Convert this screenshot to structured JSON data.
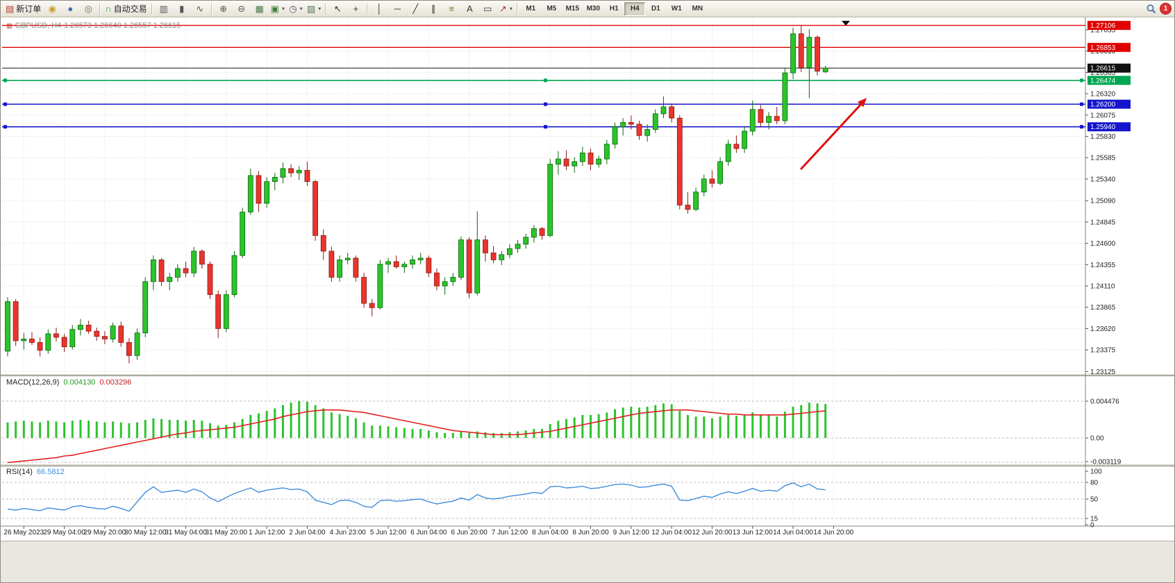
{
  "toolbar": {
    "badge": "1",
    "buttons": [
      {
        "name": "new-order-button",
        "icon": "▤",
        "icon_color": "#b03a2e",
        "label": "新订单"
      },
      {
        "name": "metaeditor-button",
        "icon": "◉",
        "icon_color": "#c9a227"
      },
      {
        "name": "data-window-button",
        "icon": "●",
        "icon_color": "#3b6fb5"
      },
      {
        "name": "strategy-tester-button",
        "icon": "◎",
        "icon_color": "#6b6b6b"
      },
      {
        "sep": true
      },
      {
        "name": "auto-trading-button",
        "icon": "∩",
        "icon_color": "#2e9e3f",
        "label": "自动交易"
      },
      {
        "sep": true
      },
      {
        "name": "bar-chart-button",
        "icon": "▥",
        "icon_color": "#555555"
      },
      {
        "name": "candlestick-chart-button",
        "icon": "▮",
        "icon_color": "#555555"
      },
      {
        "name": "line-chart-button",
        "icon": "∿",
        "icon_color": "#555555"
      },
      {
        "sep": true
      },
      {
        "name": "zoom-in-button",
        "icon": "⊕",
        "icon_color": "#555555"
      },
      {
        "name": "zoom-out-button",
        "icon": "⊖",
        "icon_color": "#555555"
      },
      {
        "name": "tile-windows-button",
        "icon": "▦",
        "icon_color": "#4a7a4a"
      },
      {
        "name": "new-chart-button",
        "icon": "▣",
        "icon_color": "#3f7f3f",
        "dropdown": true
      },
      {
        "name": "periods-button",
        "icon": "◷",
        "icon_color": "#555577",
        "dropdown": true
      },
      {
        "name": "templates-button",
        "icon": "▨",
        "icon_color": "#557755",
        "dropdown": true
      },
      {
        "sep": true
      },
      {
        "name": "cursor-button",
        "icon": "↖",
        "icon_color": "#333333"
      },
      {
        "name": "crosshair-button",
        "icon": "+",
        "icon_color": "#333333"
      },
      {
        "sep": true
      },
      {
        "name": "vertical-line-button",
        "icon": "│",
        "icon_color": "#333333"
      },
      {
        "name": "horizontal-line-button",
        "icon": "─",
        "icon_color": "#333333"
      },
      {
        "name": "trendline-button",
        "icon": "╱",
        "icon_color": "#333333"
      },
      {
        "name": "channel-button",
        "icon": "∥",
        "icon_color": "#333333"
      },
      {
        "name": "fibonacci-button",
        "icon": "≡",
        "icon_color": "#777733"
      },
      {
        "name": "text-button",
        "icon": "A",
        "icon_color": "#333333"
      },
      {
        "name": "label-button",
        "icon": "▭",
        "icon_color": "#333333"
      },
      {
        "name": "arrows-button",
        "icon": "↗",
        "icon_color": "#aa3333",
        "dropdown": true
      },
      {
        "sep": true
      }
    ],
    "timeframes": [
      {
        "name": "tf-m1",
        "label": "M1"
      },
      {
        "name": "tf-m5",
        "label": "M5"
      },
      {
        "name": "tf-m15",
        "label": "M15"
      },
      {
        "name": "tf-m30",
        "label": "M30"
      },
      {
        "name": "tf-h1",
        "label": "H1"
      },
      {
        "name": "tf-h4",
        "label": "H4",
        "active": true
      },
      {
        "name": "tf-d1",
        "label": "D1"
      },
      {
        "name": "tf-w1",
        "label": "W1"
      },
      {
        "name": "tf-mn",
        "label": "MN"
      }
    ]
  },
  "chart": {
    "title": {
      "text": "GBPUSD, H4"
    },
    "objects": [
      {
        "name": "resistance-line-1",
        "label": "1.27106",
        "color": "#e00000",
        "width": 1.4,
        "handles": false,
        "interactable": true
      },
      {
        "name": "resistance-line-2",
        "label": "1.26853",
        "color": "#e00000",
        "width": 1.4,
        "handles": false,
        "interactable": true
      },
      {
        "name": "current-price-line",
        "label": "1.26615",
        "color": "#111111",
        "width": 1,
        "handles": false,
        "interactable": false
      },
      {
        "name": "support-line-green",
        "label": "1.26474",
        "color": "#00a651",
        "width": 1.6,
        "handles": true,
        "interactable": true
      },
      {
        "name": "support-line-blue-1",
        "label": "1.26200",
        "color": "#1414cc",
        "width": 1.6,
        "handles": true,
        "interactable": true
      },
      {
        "name": "support-line-blue-2",
        "label": "1.25940",
        "color": "#1414cc",
        "width": 1.6,
        "handles": true,
        "interactable": true
      }
    ],
    "arrow": {
      "color": "#e01010"
    }
  },
  "chart_data": {
    "type": "candlestick",
    "symbol": "GBPUSD",
    "period": "H4",
    "ohlc_display": "1.26573 1.26640 1.26557 1.26615",
    "price_scale": [
      "1.27055",
      "1.26810",
      "1.26565",
      "1.26320",
      "1.26075",
      "1.25830",
      "1.25585",
      "1.25340",
      "1.25090",
      "1.24845",
      "1.24600",
      "1.24355",
      "1.24110",
      "1.23865",
      "1.23620",
      "1.23375",
      "1.23125"
    ],
    "time_scale": [
      "26 May 2023",
      "29 May 04:00",
      "29 May 20:00",
      "30 May 12:00",
      "31 May 04:00",
      "31 May 20:00",
      "1 Jun 12:00",
      "2 Jun 04:00",
      "4 Jun 23:00",
      "5 Jun 12:00",
      "6 Jun 04:00",
      "6 Jun 20:00",
      "7 Jun 12:00",
      "8 Jun 04:00",
      "8 Jun 20:00",
      "9 Jun 12:00",
      "12 Jun 04:00",
      "12 Jun 20:00",
      "13 Jun 12:00",
      "14 Jun 04:00",
      "14 Jun 20:00"
    ],
    "candles": [
      [
        1.2336,
        1.2398,
        1.233,
        1.2393
      ],
      [
        1.2393,
        1.2396,
        1.2342,
        1.2348
      ],
      [
        1.2348,
        1.2357,
        1.2338,
        1.235
      ],
      [
        1.235,
        1.2358,
        1.2343,
        1.2346
      ],
      [
        1.2346,
        1.2352,
        1.233,
        1.2337
      ],
      [
        1.2337,
        1.2361,
        1.2333,
        1.2356
      ],
      [
        1.2356,
        1.2363,
        1.2347,
        1.2352
      ],
      [
        1.2352,
        1.2356,
        1.2335,
        1.2341
      ],
      [
        1.2341,
        1.2366,
        1.2338,
        1.2361
      ],
      [
        1.2361,
        1.2373,
        1.2354,
        1.2366
      ],
      [
        1.2366,
        1.2371,
        1.2356,
        1.2359
      ],
      [
        1.2359,
        1.2363,
        1.2348,
        1.2353
      ],
      [
        1.2353,
        1.2359,
        1.2344,
        1.235
      ],
      [
        1.235,
        1.2369,
        1.2346,
        1.2365
      ],
      [
        1.2365,
        1.237,
        1.2341,
        1.2346
      ],
      [
        1.2346,
        1.2351,
        1.2322,
        1.2331
      ],
      [
        1.2331,
        1.2362,
        1.2326,
        1.2357
      ],
      [
        1.2357,
        1.2421,
        1.2352,
        1.2416
      ],
      [
        1.2416,
        1.2446,
        1.2406,
        1.2441
      ],
      [
        1.2441,
        1.2443,
        1.2411,
        1.2416
      ],
      [
        1.2416,
        1.2426,
        1.2406,
        1.2421
      ],
      [
        1.2421,
        1.2436,
        1.2416,
        1.2431
      ],
      [
        1.2431,
        1.2439,
        1.2421,
        1.2426
      ],
      [
        1.2426,
        1.2456,
        1.2421,
        1.2451
      ],
      [
        1.2451,
        1.2453,
        1.2431,
        1.2436
      ],
      [
        1.2436,
        1.2439,
        1.2396,
        1.2401
      ],
      [
        1.2401,
        1.2406,
        1.2351,
        1.2362
      ],
      [
        1.2362,
        1.2406,
        1.2358,
        1.2401
      ],
      [
        1.2401,
        1.2451,
        1.2398,
        1.2446
      ],
      [
        1.2446,
        1.2501,
        1.2443,
        1.2496
      ],
      [
        1.2496,
        1.2546,
        1.2493,
        1.2538
      ],
      [
        1.2538,
        1.2543,
        1.2496,
        1.2506
      ],
      [
        1.2506,
        1.2536,
        1.2501,
        1.2531
      ],
      [
        1.2531,
        1.2541,
        1.2521,
        1.2536
      ],
      [
        1.2536,
        1.2553,
        1.2529,
        1.2546
      ],
      [
        1.2546,
        1.2551,
        1.2536,
        1.2541
      ],
      [
        1.2541,
        1.2549,
        1.2533,
        1.2544
      ],
      [
        1.2544,
        1.2554,
        1.2526,
        1.2531
      ],
      [
        1.2531,
        1.2533,
        1.2463,
        1.2469
      ],
      [
        1.2469,
        1.2476,
        1.2441,
        1.2451
      ],
      [
        1.2451,
        1.2456,
        1.2416,
        1.2421
      ],
      [
        1.2421,
        1.2446,
        1.2416,
        1.2441
      ],
      [
        1.2441,
        1.2449,
        1.2436,
        1.2443
      ],
      [
        1.2443,
        1.2446,
        1.2416,
        1.2421
      ],
      [
        1.2421,
        1.2426,
        1.2386,
        1.2391
      ],
      [
        1.2391,
        1.2396,
        1.2376,
        1.2386
      ],
      [
        1.2386,
        1.2441,
        1.2384,
        1.2436
      ],
      [
        1.2436,
        1.2443,
        1.2426,
        1.2439
      ],
      [
        1.2439,
        1.2446,
        1.2431,
        1.2433
      ],
      [
        1.2433,
        1.2439,
        1.2426,
        1.2436
      ],
      [
        1.2436,
        1.2446,
        1.2431,
        1.2441
      ],
      [
        1.2441,
        1.2449,
        1.2436,
        1.2443
      ],
      [
        1.2443,
        1.2446,
        1.2421,
        1.2426
      ],
      [
        1.2426,
        1.2431,
        1.2406,
        1.2411
      ],
      [
        1.2411,
        1.2421,
        1.2401,
        1.2416
      ],
      [
        1.2416,
        1.2426,
        1.2411,
        1.2421
      ],
      [
        1.2421,
        1.2468,
        1.2418,
        1.2464
      ],
      [
        1.2464,
        1.2467,
        1.2397,
        1.2403
      ],
      [
        1.2403,
        1.2497,
        1.24,
        1.2464
      ],
      [
        1.2464,
        1.2469,
        1.2439,
        1.2449
      ],
      [
        1.2449,
        1.2457,
        1.2437,
        1.2441
      ],
      [
        1.2441,
        1.2451,
        1.2435,
        1.2447
      ],
      [
        1.2447,
        1.2459,
        1.2443,
        1.2454
      ],
      [
        1.2454,
        1.2464,
        1.2449,
        1.2459
      ],
      [
        1.2459,
        1.2471,
        1.2454,
        1.2467
      ],
      [
        1.2467,
        1.2481,
        1.2461,
        1.2477
      ],
      [
        1.2477,
        1.2479,
        1.2464,
        1.2469
      ],
      [
        1.2469,
        1.2557,
        1.2467,
        1.2551
      ],
      [
        1.2551,
        1.2566,
        1.2539,
        1.2557
      ],
      [
        1.2557,
        1.2567,
        1.2544,
        1.2549
      ],
      [
        1.2549,
        1.2559,
        1.2541,
        1.2554
      ],
      [
        1.2554,
        1.2571,
        1.2549,
        1.2564
      ],
      [
        1.2564,
        1.2569,
        1.2544,
        1.2551
      ],
      [
        1.2551,
        1.2561,
        1.2547,
        1.2557
      ],
      [
        1.2557,
        1.2579,
        1.2551,
        1.2574
      ],
      [
        1.2574,
        1.2599,
        1.2569,
        1.2594
      ],
      [
        1.2594,
        1.2604,
        1.2584,
        1.2599
      ],
      [
        1.2599,
        1.2607,
        1.2591,
        1.2597
      ],
      [
        1.2597,
        1.2601,
        1.2579,
        1.2584
      ],
      [
        1.2584,
        1.2597,
        1.2577,
        1.2591
      ],
      [
        1.2591,
        1.2614,
        1.2587,
        1.2609
      ],
      [
        1.2609,
        1.2629,
        1.2604,
        1.2617
      ],
      [
        1.2617,
        1.2621,
        1.2599,
        1.2604
      ],
      [
        1.2604,
        1.2607,
        1.2499,
        1.2504
      ],
      [
        1.2504,
        1.2519,
        1.2494,
        1.2499
      ],
      [
        1.2499,
        1.2524,
        1.2497,
        1.2519
      ],
      [
        1.2519,
        1.2539,
        1.2514,
        1.2534
      ],
      [
        1.2534,
        1.2544,
        1.2524,
        1.2529
      ],
      [
        1.2529,
        1.2559,
        1.2527,
        1.2554
      ],
      [
        1.2554,
        1.2579,
        1.2549,
        1.2574
      ],
      [
        1.2574,
        1.2584,
        1.2564,
        1.2569
      ],
      [
        1.2569,
        1.2594,
        1.2564,
        1.2589
      ],
      [
        1.2589,
        1.2624,
        1.2584,
        1.2614
      ],
      [
        1.2614,
        1.2619,
        1.2594,
        1.2599
      ],
      [
        1.2599,
        1.2611,
        1.2591,
        1.2606
      ],
      [
        1.2606,
        1.2617,
        1.2597,
        1.2601
      ],
      [
        1.2601,
        1.2662,
        1.2597,
        1.2656
      ],
      [
        1.2656,
        1.2708,
        1.2649,
        1.2701
      ],
      [
        1.2701,
        1.2711,
        1.2657,
        1.2662
      ],
      [
        1.2662,
        1.2706,
        1.2627,
        1.2697
      ],
      [
        1.2697,
        1.2699,
        1.2653,
        1.2658
      ],
      [
        1.26573,
        1.2664,
        1.26557,
        1.26615
      ]
    ],
    "macd": {
      "label": "MACD(12,26,9)",
      "main_value": "0.004130",
      "signal_value": "0.003296",
      "scale": [
        "0.004476",
        "0.00",
        "-0.003119"
      ],
      "histogram": [
        0.0019,
        0.002,
        0.0021,
        0.002,
        0.0019,
        0.0021,
        0.002,
        0.0019,
        0.0021,
        0.0022,
        0.0021,
        0.002,
        0.0019,
        0.002,
        0.0019,
        0.0018,
        0.0019,
        0.0022,
        0.0024,
        0.0023,
        0.0022,
        0.0022,
        0.0021,
        0.0022,
        0.0021,
        0.0018,
        0.0015,
        0.0016,
        0.0019,
        0.0023,
        0.0028,
        0.003,
        0.0033,
        0.0036,
        0.004,
        0.0043,
        0.0045,
        0.0044,
        0.004,
        0.0036,
        0.0031,
        0.0029,
        0.0027,
        0.0024,
        0.0019,
        0.0015,
        0.0015,
        0.0014,
        0.0013,
        0.0012,
        0.0011,
        0.0011,
        0.0009,
        0.0007,
        0.0006,
        0.0006,
        0.0008,
        0.0006,
        0.0008,
        0.0007,
        0.0006,
        0.0006,
        0.0007,
        0.0008,
        0.0009,
        0.0011,
        0.0011,
        0.0017,
        0.0021,
        0.0023,
        0.0025,
        0.0028,
        0.0028,
        0.0029,
        0.0031,
        0.0035,
        0.0037,
        0.0038,
        0.0037,
        0.0038,
        0.004,
        0.0042,
        0.0041,
        0.0033,
        0.0028,
        0.0026,
        0.0026,
        0.0024,
        0.0026,
        0.0028,
        0.0027,
        0.0028,
        0.0031,
        0.0028,
        0.0028,
        0.0026,
        0.0032,
        0.0038,
        0.004,
        0.0043,
        0.0042,
        0.00413
      ],
      "signal": [
        -0.003,
        -0.0029,
        -0.0028,
        -0.0027,
        -0.0026,
        -0.0025,
        -0.0024,
        -0.0022,
        -0.0021,
        -0.0019,
        -0.0017,
        -0.0015,
        -0.0013,
        -0.0011,
        -0.0009,
        -0.0007,
        -0.0005,
        -0.0003,
        -0.0001,
        0.0001,
        0.0003,
        0.0005,
        0.0006,
        0.0008,
        0.0009,
        0.001,
        0.0011,
        0.0012,
        0.0013,
        0.0015,
        0.0017,
        0.0019,
        0.0021,
        0.0023,
        0.0026,
        0.0028,
        0.003,
        0.0032,
        0.0033,
        0.0034,
        0.0034,
        0.0034,
        0.0033,
        0.0032,
        0.0031,
        0.0029,
        0.0027,
        0.0025,
        0.0023,
        0.0021,
        0.0019,
        0.0017,
        0.0015,
        0.0013,
        0.0011,
        0.0009,
        0.0008,
        0.0007,
        0.0006,
        0.0005,
        0.0004,
        0.0004,
        0.0004,
        0.0004,
        0.0005,
        0.0006,
        0.0007,
        0.0008,
        0.001,
        0.0012,
        0.0014,
        0.0016,
        0.0018,
        0.002,
        0.0022,
        0.0024,
        0.0026,
        0.0028,
        0.003,
        0.0031,
        0.0032,
        0.0033,
        0.0034,
        0.0034,
        0.0034,
        0.0033,
        0.0032,
        0.0031,
        0.003,
        0.0029,
        0.0029,
        0.0028,
        0.0028,
        0.0028,
        0.0028,
        0.0028,
        0.0028,
        0.0029,
        0.003,
        0.0031,
        0.0032,
        0.0033
      ]
    },
    "rsi": {
      "label": "RSI(14)",
      "value": "66.5812",
      "scale": [
        "100",
        "80",
        "50",
        "15",
        "0"
      ],
      "levels": [
        80,
        50,
        15
      ],
      "series": [
        32,
        30,
        33,
        31,
        29,
        34,
        32,
        30,
        36,
        38,
        35,
        33,
        32,
        37,
        33,
        28,
        45,
        62,
        72,
        62,
        64,
        66,
        62,
        68,
        63,
        52,
        45,
        53,
        60,
        65,
        70,
        62,
        66,
        68,
        70,
        67,
        68,
        63,
        48,
        44,
        40,
        47,
        48,
        44,
        37,
        35,
        47,
        48,
        46,
        47,
        49,
        50,
        45,
        41,
        44,
        46,
        52,
        48,
        58,
        52,
        50,
        52,
        55,
        57,
        59,
        62,
        60,
        72,
        73,
        70,
        71,
        73,
        69,
        70,
        73,
        76,
        77,
        75,
        71,
        72,
        75,
        77,
        73,
        48,
        47,
        51,
        55,
        53,
        59,
        63,
        60,
        64,
        69,
        64,
        66,
        64,
        74,
        79,
        72,
        77,
        68,
        66.58
      ]
    },
    "colors": {
      "candle_up": "#2bc42b",
      "candle_up_border": "#0a660a",
      "candle_down": "#e8352e",
      "candle_down_border": "#8e1710",
      "macd_hist": "#2bc42b",
      "macd_signal": "#e02020",
      "rsi_line": "#3f8edc",
      "grid": "#dcdcdc"
    }
  }
}
